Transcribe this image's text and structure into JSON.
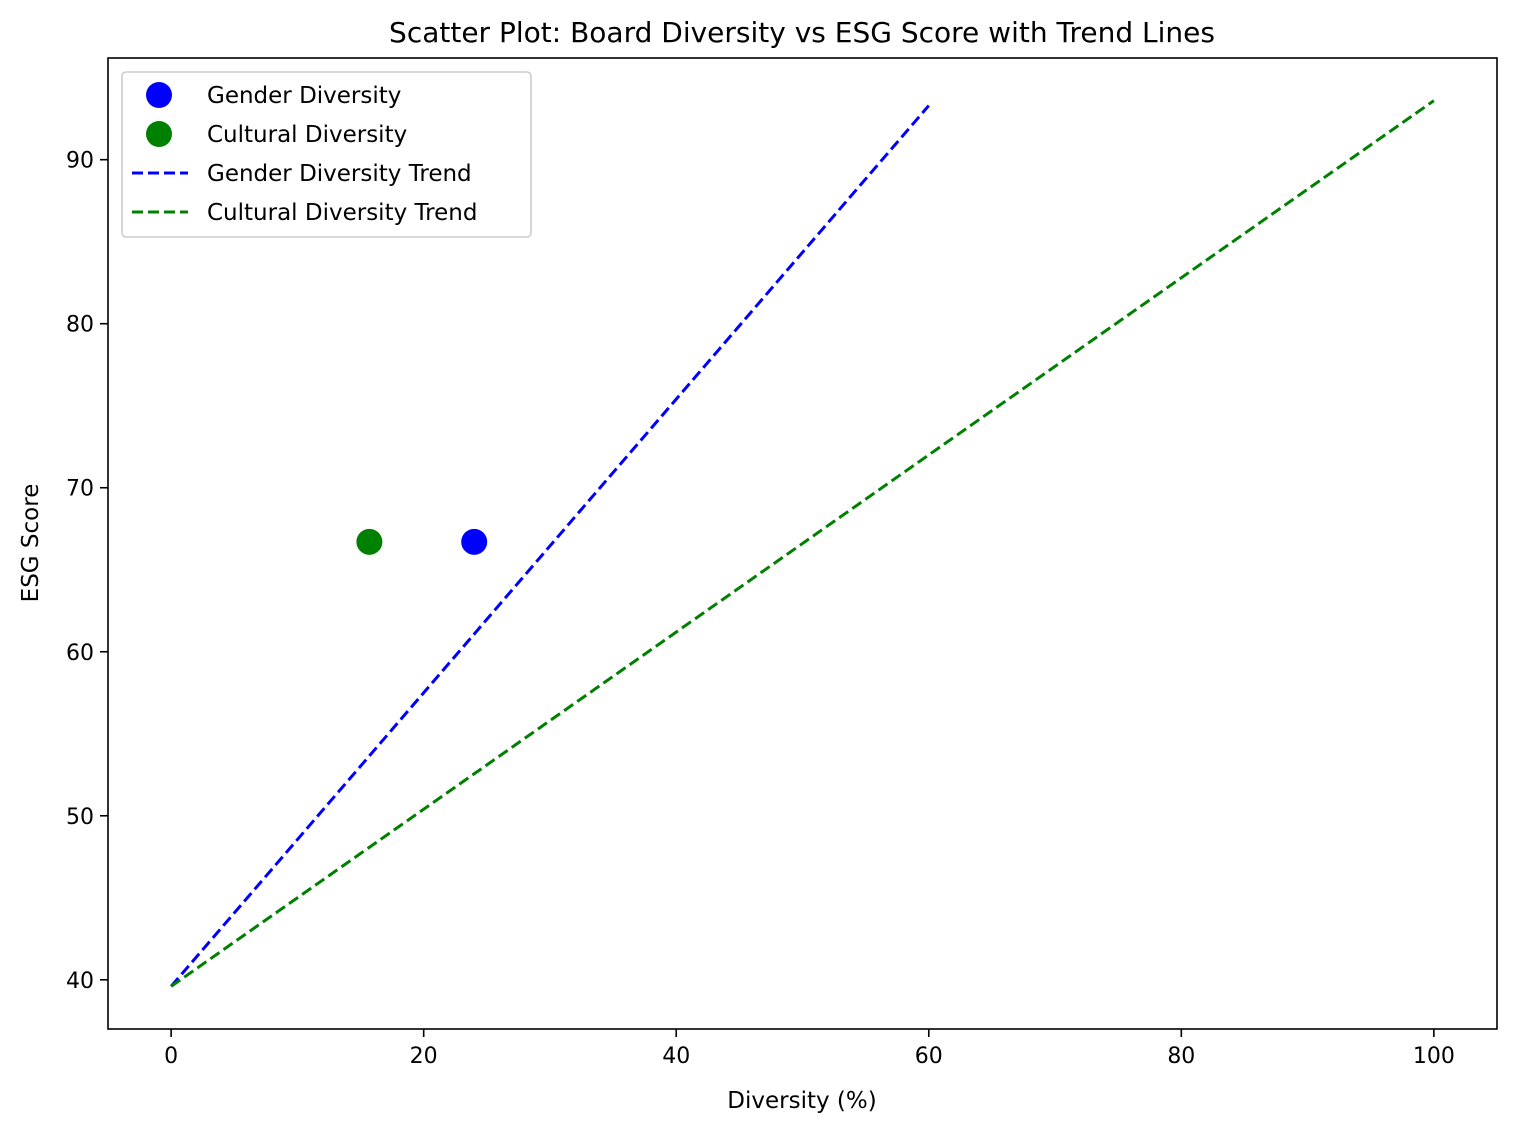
{
  "chart_data": {
    "type": "scatter",
    "title": "Scatter Plot: Board Diversity vs ESG Score with Trend Lines",
    "xlabel": "Diversity (%)",
    "ylabel": "ESG Score",
    "xlim": [
      -5,
      105
    ],
    "ylim": [
      37,
      96.2
    ],
    "xticks": [
      0,
      20,
      40,
      60,
      80,
      100
    ],
    "yticks": [
      40,
      50,
      60,
      70,
      80,
      90
    ],
    "grid": false,
    "legend_position": "top-left",
    "series": [
      {
        "name": "Gender Diversity",
        "kind": "scatter",
        "color": "#0000ff",
        "points": [
          {
            "x": 24,
            "y": 66.7
          }
        ]
      },
      {
        "name": "Cultural Diversity",
        "kind": "scatter",
        "color": "#008000",
        "points": [
          {
            "x": 15.7,
            "y": 66.7
          }
        ]
      },
      {
        "name": "Gender Diversity Trend",
        "kind": "line",
        "style": "dashed",
        "color": "#0000ff",
        "points": [
          {
            "x": 0,
            "y": 39.6
          },
          {
            "x": 60,
            "y": 93.3
          }
        ]
      },
      {
        "name": "Cultural Diversity Trend",
        "kind": "line",
        "style": "dashed",
        "color": "#008000",
        "points": [
          {
            "x": 0,
            "y": 39.6
          },
          {
            "x": 100,
            "y": 93.6
          }
        ]
      }
    ]
  }
}
